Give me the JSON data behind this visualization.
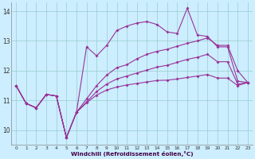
{
  "background_color": "#cceeff",
  "grid_color": "#99cccc",
  "line_color": "#993399",
  "xlabel": "Windchill (Refroidissement éolien,°C)",
  "ylim": [
    9.5,
    14.3
  ],
  "xlim": [
    -0.5,
    23.5
  ],
  "yticks": [
    10,
    11,
    12,
    13,
    14
  ],
  "xticks": [
    0,
    1,
    2,
    3,
    4,
    5,
    6,
    7,
    8,
    9,
    10,
    11,
    12,
    13,
    14,
    15,
    16,
    17,
    18,
    19,
    20,
    21,
    22,
    23
  ],
  "line_jagged": [
    11.5,
    10.9,
    10.75,
    11.2,
    11.15,
    9.75,
    10.6,
    12.8,
    12.5,
    12.85,
    13.35,
    13.5,
    13.6,
    13.65,
    13.55,
    13.3,
    13.25,
    14.1,
    13.2,
    13.15,
    12.8,
    12.8,
    11.65,
    11.6
  ],
  "line_top": [
    11.5,
    10.9,
    10.75,
    11.2,
    11.15,
    9.75,
    10.6,
    11.05,
    11.5,
    11.85,
    12.1,
    12.2,
    12.4,
    12.55,
    12.65,
    12.72,
    12.82,
    12.92,
    13.0,
    13.1,
    12.85,
    12.85,
    12.0,
    11.6
  ],
  "line_mid": [
    11.5,
    10.9,
    10.75,
    11.2,
    11.15,
    9.75,
    10.6,
    10.95,
    11.3,
    11.55,
    11.72,
    11.82,
    11.92,
    12.02,
    12.12,
    12.18,
    12.28,
    12.38,
    12.45,
    12.55,
    12.3,
    12.3,
    11.55,
    11.6
  ],
  "line_bot": [
    11.5,
    10.9,
    10.75,
    11.2,
    11.15,
    9.75,
    10.6,
    10.92,
    11.18,
    11.35,
    11.45,
    11.52,
    11.57,
    11.62,
    11.67,
    11.68,
    11.72,
    11.77,
    11.82,
    11.87,
    11.75,
    11.75,
    11.5,
    11.6
  ]
}
